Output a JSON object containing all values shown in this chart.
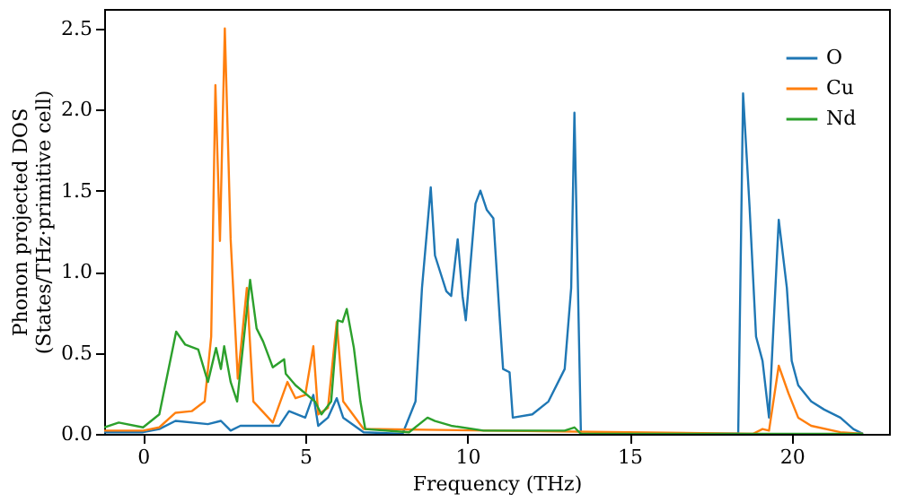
{
  "chart_data": {
    "type": "line",
    "xlabel": "Frequency (THz)",
    "ylabel": "Phonon projected DOS\n(States/THz·primitive cell)",
    "xlim": [
      -1.2,
      23
    ],
    "ylim": [
      0,
      2.62
    ],
    "xticks": [
      0,
      5,
      10,
      15,
      20
    ],
    "yticks": [
      {
        "value": 0,
        "label": "0.0"
      },
      0.5,
      {
        "value": 1,
        "label": "1.0"
      },
      1.5,
      {
        "value": 2,
        "label": "2.0"
      },
      2.5
    ],
    "grid": false,
    "legend": "top right",
    "line_style": "solid",
    "marker": "none",
    "series": [
      {
        "name": "O",
        "color": "#1f77b4",
        "x": [
          -1.2,
          0,
          0.5,
          1.0,
          2.0,
          2.4,
          2.7,
          3.0,
          4.2,
          4.5,
          5.0,
          5.25,
          5.4,
          5.7,
          5.97,
          6.17,
          6.8,
          8.0,
          8.4,
          8.6,
          8.87,
          9.0,
          9.35,
          9.5,
          9.7,
          9.85,
          9.95,
          10.25,
          10.4,
          10.6,
          10.8,
          11.0,
          11.1,
          11.3,
          11.4,
          12.0,
          12.5,
          13.0,
          13.2,
          13.3,
          13.5,
          18.35,
          18.5,
          18.7,
          18.9,
          19.1,
          19.3,
          19.6,
          19.85,
          20.0,
          20.2,
          20.6,
          21.0,
          21.5,
          21.9,
          22.2
        ],
        "values": [
          0.01,
          0.01,
          0.03,
          0.08,
          0.06,
          0.08,
          0.02,
          0.05,
          0.05,
          0.14,
          0.1,
          0.24,
          0.05,
          0.1,
          0.22,
          0.1,
          0.01,
          0,
          0.2,
          0.9,
          1.52,
          1.1,
          0.88,
          0.85,
          1.2,
          0.85,
          0.7,
          1.42,
          1.5,
          1.38,
          1.33,
          0.7,
          0.4,
          0.38,
          0.1,
          0.12,
          0.2,
          0.4,
          0.9,
          1.98,
          0,
          0,
          2.1,
          1.4,
          0.6,
          0.45,
          0.1,
          1.32,
          0.9,
          0.45,
          0.3,
          0.2,
          0.15,
          0.1,
          0.03,
          0
        ]
      },
      {
        "name": "Cu",
        "color": "#ff7f0e",
        "x": [
          -1.2,
          0,
          0.5,
          1.0,
          1.5,
          1.9,
          2.1,
          2.23,
          2.37,
          2.52,
          2.7,
          2.92,
          3.2,
          3.4,
          4.0,
          4.45,
          4.7,
          5.0,
          5.25,
          5.4,
          5.7,
          5.97,
          6.17,
          6.8,
          18.8,
          19.1,
          19.3,
          19.6,
          19.9,
          20.2,
          20.6,
          21.5,
          22.2
        ],
        "values": [
          0.02,
          0.02,
          0.04,
          0.13,
          0.14,
          0.2,
          0.6,
          2.15,
          1.19,
          2.5,
          1.2,
          0.34,
          0.9,
          0.2,
          0.07,
          0.32,
          0.22,
          0.24,
          0.54,
          0.12,
          0.16,
          0.69,
          0.2,
          0.03,
          0,
          0.03,
          0.02,
          0.42,
          0.25,
          0.1,
          0.05,
          0.01,
          0
        ]
      },
      {
        "name": "Nd",
        "color": "#2ca02c",
        "x": [
          -1.2,
          -0.75,
          0,
          0.5,
          1.02,
          1.3,
          1.7,
          2.0,
          2.25,
          2.4,
          2.5,
          2.7,
          2.9,
          3.3,
          3.5,
          3.7,
          4.0,
          4.35,
          4.4,
          4.7,
          5.3,
          5.5,
          5.8,
          6.0,
          6.15,
          6.28,
          6.5,
          6.7,
          6.85,
          8.2,
          8.77,
          9.0,
          9.5,
          10.5,
          13.0,
          13.3,
          13.5,
          22.2
        ],
        "values": [
          0.04,
          0.07,
          0.04,
          0.12,
          0.63,
          0.55,
          0.52,
          0.32,
          0.53,
          0.4,
          0.54,
          0.32,
          0.2,
          0.95,
          0.65,
          0.57,
          0.41,
          0.46,
          0.37,
          0.3,
          0.2,
          0.12,
          0.2,
          0.7,
          0.69,
          0.77,
          0.53,
          0.2,
          0.03,
          0.01,
          0.1,
          0.08,
          0.05,
          0.02,
          0.02,
          0.04,
          0,
          0
        ]
      }
    ]
  }
}
